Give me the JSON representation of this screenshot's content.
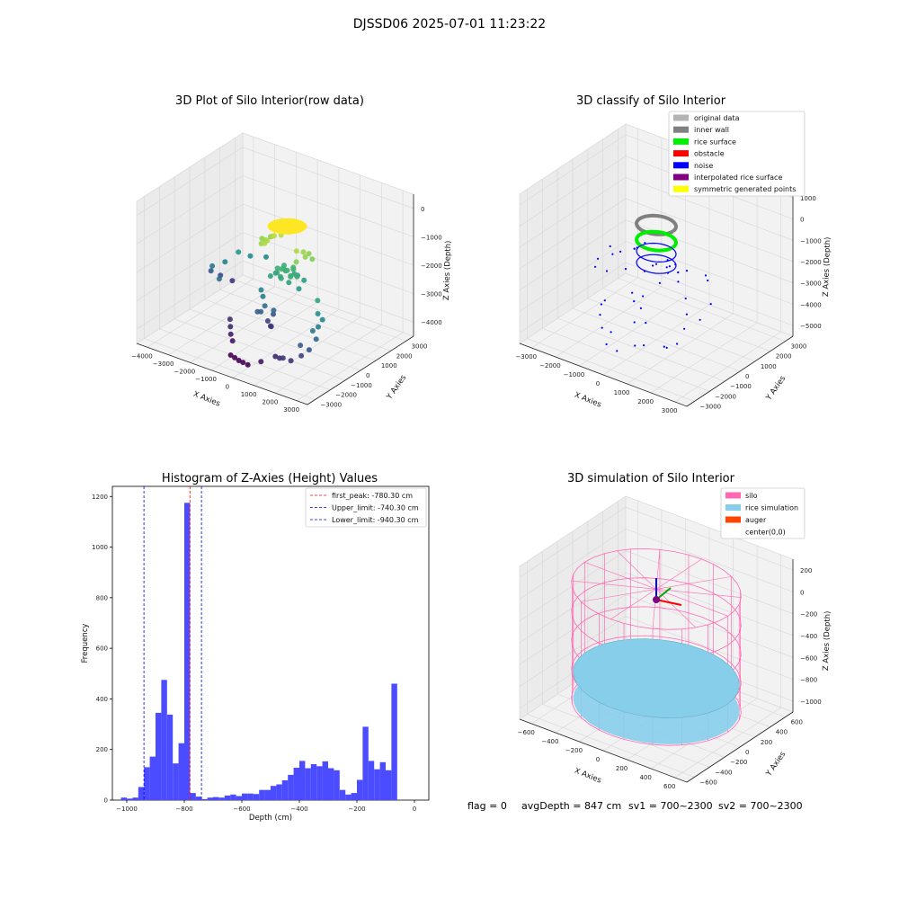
{
  "figure_title": "DJSSD06 2025-07-01 11:23:22",
  "status_text": {
    "flag": "flag = 0",
    "avg": "avgDepth = 847 cm",
    "sv1": "sv1 = 700~2300",
    "sv2": "sv2 = 700~2300"
  },
  "chart_data": [
    {
      "id": "raw",
      "type": "scatter",
      "title": "3D Plot of Silo Interior(row data)",
      "xlabel": "X Axies",
      "ylabel": "Y Axies",
      "zlabel": "Z Axies (Depth)",
      "xticks": [
        "−4000",
        "−3000",
        "−2000",
        "−1000",
        "0",
        "1000",
        "2000",
        "3000"
      ],
      "yticks": [
        "−3000",
        "−2000",
        "−1000",
        "0",
        "1000",
        "2000",
        "3000"
      ],
      "zticks": [
        "0",
        "−1000",
        "−2000",
        "−3000",
        "−4000"
      ],
      "xlim": [
        -4000,
        3000
      ],
      "ylim": [
        -3500,
        3500
      ],
      "zlim": [
        -5000,
        0
      ],
      "colormap": "viridis (by depth)",
      "points": [
        [
          0,
          0,
          -900
        ],
        [
          200,
          100,
          -880
        ],
        [
          -200,
          150,
          -900
        ],
        [
          100,
          -250,
          -890
        ],
        [
          -150,
          -200,
          -910
        ],
        [
          300,
          -50,
          -900
        ],
        [
          -300,
          0,
          -905
        ],
        [
          0,
          300,
          -895
        ],
        [
          0,
          -320,
          -900
        ],
        [
          250,
          250,
          -910
        ],
        [
          -250,
          -260,
          -900
        ],
        [
          220,
          -230,
          -905
        ],
        [
          -230,
          230,
          -895
        ],
        [
          -600,
          100,
          -1400
        ],
        [
          -700,
          -200,
          -1500
        ],
        [
          -500,
          400,
          -1450
        ],
        [
          -800,
          300,
          -1550
        ],
        [
          -900,
          0,
          -1600
        ],
        [
          -650,
          -450,
          -1500
        ],
        [
          -1000,
          500,
          -1700
        ],
        [
          -1100,
          100,
          -1650
        ],
        [
          -850,
          -350,
          -1600
        ],
        [
          500,
          -200,
          -1500
        ],
        [
          600,
          100,
          -1600
        ],
        [
          700,
          300,
          -1700
        ],
        [
          800,
          -100,
          -1650
        ],
        [
          900,
          200,
          -1800
        ],
        [
          650,
          -450,
          -1750
        ],
        [
          0,
          0,
          -2400
        ],
        [
          200,
          -100,
          -2500
        ],
        [
          -200,
          100,
          -2450
        ],
        [
          300,
          200,
          -2550
        ],
        [
          -300,
          -200,
          -2500
        ],
        [
          100,
          300,
          -2600
        ],
        [
          -100,
          -300,
          -2550
        ],
        [
          400,
          0,
          -2500
        ],
        [
          -400,
          0,
          -2450
        ],
        [
          250,
          -300,
          -2650
        ],
        [
          -250,
          300,
          -2600
        ],
        [
          0,
          400,
          -2500
        ],
        [
          0,
          -400,
          -2550
        ],
        [
          500,
          300,
          -2700
        ],
        [
          -500,
          -300,
          -2650
        ],
        [
          600,
          -200,
          -2800
        ],
        [
          -600,
          200,
          -2750
        ],
        [
          150,
          150,
          -2300
        ],
        [
          -150,
          -150,
          -2350
        ],
        [
          350,
          -350,
          -2400
        ],
        [
          -350,
          350,
          -2450
        ],
        [
          -2500,
          800,
          -2800
        ],
        [
          -2200,
          1100,
          -2950
        ],
        [
          -2800,
          400,
          -3100
        ],
        [
          -1800,
          1500,
          -3000
        ],
        [
          -3200,
          200,
          -3300
        ],
        [
          -2600,
          -300,
          -3400
        ],
        [
          1800,
          -900,
          -2600
        ],
        [
          2000,
          -1200,
          -2900
        ],
        [
          2200,
          -1500,
          -3200
        ],
        [
          2300,
          -1800,
          -3500
        ],
        [
          2200,
          -2100,
          -3800
        ],
        [
          2000,
          -2300,
          -4000
        ],
        [
          1700,
          -2500,
          -4200
        ],
        [
          1900,
          -2200,
          -3700
        ],
        [
          2100,
          -1700,
          -3300
        ],
        [
          2250,
          -1300,
          -3000
        ],
        [
          -500,
          -800,
          -3200
        ],
        [
          -300,
          -1000,
          -3400
        ],
        [
          -700,
          -600,
          -3100
        ],
        [
          0,
          -900,
          -3500
        ],
        [
          -400,
          -1100,
          -3600
        ],
        [
          -600,
          -1000,
          -3700
        ],
        [
          -200,
          -600,
          -3800
        ],
        [
          -300,
          -800,
          -4000
        ],
        [
          -100,
          -900,
          -4100
        ],
        [
          -250,
          -700,
          -4200
        ],
        [
          -1400,
          -1500,
          -4300
        ],
        [
          -1200,
          -1800,
          -4400
        ],
        [
          -1600,
          -1200,
          -4200
        ],
        [
          -1000,
          -2000,
          -4500
        ],
        [
          -600,
          -2500,
          -4800
        ],
        [
          -400,
          -2550,
          -4820
        ],
        [
          -200,
          -2600,
          -4810
        ],
        [
          0,
          -2600,
          -4830
        ],
        [
          -800,
          -2450,
          -4790
        ],
        [
          1000,
          -2400,
          -4300
        ],
        [
          1300,
          -2600,
          -4200
        ],
        [
          600,
          -2700,
          -4500
        ],
        [
          1500,
          -2700,
          -4100
        ],
        [
          -3300,
          900,
          -3900
        ],
        [
          -3500,
          600,
          -3700
        ],
        [
          -3000,
          1200,
          -4100
        ]
      ]
    },
    {
      "id": "cls",
      "type": "scatter",
      "title": "3D classify of Silo Interior",
      "xlabel": "X Axies",
      "ylabel": "Y Axies",
      "zlabel": "Z Axies (Depth)",
      "xticks": [
        "−3000",
        "−2000",
        "−1000",
        "0",
        "1000",
        "2000",
        "3000"
      ],
      "yticks": [
        "−3000",
        "−2000",
        "−1000",
        "0",
        "1000",
        "2000",
        "3000"
      ],
      "zticks": [
        "1000",
        "0",
        "−1000",
        "−2000",
        "−3000",
        "−4000",
        "−5000"
      ],
      "xlim": [
        -3500,
        3500
      ],
      "ylim": [
        -3500,
        3500
      ],
      "zlim": [
        -5500,
        1000
      ],
      "legend_position": "upper right",
      "legend": [
        {
          "label": "original data",
          "color": "#b4b4b4"
        },
        {
          "label": "inner wall",
          "color": "#808080"
        },
        {
          "label": "rice surface",
          "color": "#00ee00"
        },
        {
          "label": "obstacle",
          "color": "#ff0000"
        },
        {
          "label": "noise",
          "color": "#0000ff"
        },
        {
          "label": "interpolated rice surface",
          "color": "#800080"
        },
        {
          "label": "symmetric generated points",
          "color": "#ffff00"
        }
      ],
      "inner_wall_radius": 700,
      "rice_surface_z": -1200,
      "noise_points": [
        [
          -2500,
          900,
          -2800
        ],
        [
          -2200,
          1100,
          -3000
        ],
        [
          -2700,
          400,
          -3200
        ],
        [
          1800,
          -900,
          -2600
        ],
        [
          2100,
          -1300,
          -3000
        ],
        [
          2250,
          -1700,
          -3400
        ],
        [
          2200,
          -2100,
          -3900
        ],
        [
          1900,
          -2300,
          -4100
        ],
        [
          -500,
          -800,
          -3300
        ],
        [
          -300,
          -1000,
          -3500
        ],
        [
          -200,
          -700,
          -3900
        ],
        [
          -1400,
          -1500,
          -4300
        ],
        [
          -1000,
          -2000,
          -4500
        ],
        [
          -500,
          -2500,
          -4800
        ],
        [
          0,
          -2600,
          -4850
        ],
        [
          1000,
          -2400,
          -4300
        ],
        [
          600,
          -200,
          -1700
        ],
        [
          -600,
          200,
          -1600
        ],
        [
          300,
          300,
          -2600
        ],
        [
          -300,
          -300,
          -2500
        ],
        [
          0,
          0,
          -2200
        ],
        [
          400,
          -400,
          -2700
        ],
        [
          -400,
          400,
          -2600
        ],
        [
          800,
          0,
          -1900
        ],
        [
          -800,
          0,
          -1800
        ],
        [
          1300,
          -600,
          -2200
        ],
        [
          -1300,
          600,
          -2300
        ],
        [
          200,
          -1200,
          -3000
        ],
        [
          -200,
          1200,
          -2900
        ],
        [
          1500,
          900,
          -2500
        ],
        [
          -1500,
          -900,
          -2700
        ],
        [
          2600,
          -500,
          -2700
        ],
        [
          -3000,
          700,
          -3800
        ],
        [
          700,
          -1800,
          -3700
        ],
        [
          -700,
          1800,
          -3400
        ],
        [
          1200,
          1500,
          -3100
        ],
        [
          -1200,
          -1500,
          -3600
        ],
        [
          100,
          -1600,
          -4000
        ],
        [
          -100,
          1600,
          -3300
        ],
        [
          2400,
          -900,
          -3300
        ],
        [
          -2400,
          900,
          -3100
        ],
        [
          500,
          -2200,
          -4600
        ],
        [
          -500,
          -2200,
          -4400
        ],
        [
          1600,
          -2000,
          -4300
        ],
        [
          -1600,
          -1100,
          -4100
        ],
        [
          900,
          600,
          -2400
        ],
        [
          -900,
          -600,
          -2500
        ],
        [
          1100,
          -300,
          -2000
        ],
        [
          -1100,
          300,
          -2100
        ]
      ]
    },
    {
      "id": "hist",
      "type": "bar",
      "title": "Histogram of Z-Axies (Height) Values",
      "xlabel": "Depth (cm)",
      "ylabel": "Frequency",
      "xlim": [
        -1050,
        50
      ],
      "ylim": [
        0,
        1240
      ],
      "xticks": [
        "−1000",
        "−800",
        "−600",
        "−400",
        "−200",
        "0"
      ],
      "yticks": [
        "0",
        "200",
        "400",
        "600",
        "800",
        "1000",
        "1200"
      ],
      "bar_color": "#4b4bff",
      "bin_width": 20,
      "bin_starts": [
        -1020,
        -1000,
        -980,
        -960,
        -940,
        -920,
        -900,
        -880,
        -860,
        -840,
        -820,
        -800,
        -780,
        -760,
        -740,
        -720,
        -700,
        -680,
        -660,
        -640,
        -620,
        -600,
        -580,
        -560,
        -540,
        -520,
        -500,
        -480,
        -460,
        -440,
        -420,
        -400,
        -380,
        -360,
        -340,
        -320,
        -300,
        -280,
        -260,
        -240,
        -220,
        -200,
        -180,
        -160,
        -140,
        -120,
        -100,
        -80,
        -60,
        -40,
        -20
      ],
      "values": [
        10,
        6,
        10,
        52,
        130,
        172,
        345,
        475,
        338,
        145,
        225,
        1175,
        28,
        14,
        4,
        10,
        12,
        10,
        18,
        22,
        16,
        26,
        26,
        24,
        40,
        40,
        56,
        62,
        78,
        100,
        128,
        155,
        126,
        142,
        134,
        153,
        126,
        118,
        40,
        22,
        28,
        80,
        290,
        155,
        122,
        150,
        118,
        460,
        0,
        0,
        0
      ],
      "vlines": [
        {
          "label": "first_peak: -780.30 cm",
          "x": -780.3,
          "color": "#ff0000"
        },
        {
          "label": "Upper_limit: -740.30 cm",
          "x": -740.3,
          "color": "#0000ff"
        },
        {
          "label": "Lower_limit: -940.30 cm",
          "x": -940.3,
          "color": "#0000ff"
        }
      ],
      "legend_position": "upper right"
    },
    {
      "id": "sim",
      "type": "3d-surface",
      "title": "3D simulation of Silo Interior",
      "xlabel": "X Axies",
      "ylabel": "Y Axies",
      "zlabel": "Z Axies (Depth)",
      "xticks": [
        "−600",
        "−400",
        "−200",
        "0",
        "200",
        "400",
        "600"
      ],
      "yticks": [
        "−600",
        "−400",
        "−200",
        "0",
        "200",
        "400",
        "600"
      ],
      "zticks": [
        "200",
        "0",
        "−200",
        "−400",
        "−600",
        "−800",
        "−1000"
      ],
      "xlim": [
        -700,
        700
      ],
      "ylim": [
        -700,
        700
      ],
      "zlim": [
        -1200,
        250
      ],
      "silo_radius": 600,
      "silo_z": [
        -1100,
        0
      ],
      "rice_surface_z": -847,
      "legend_position": "upper right",
      "legend": [
        {
          "label": "silo",
          "color": "#ff69b4"
        },
        {
          "label": "rice simulation",
          "color": "#87ceeb"
        },
        {
          "label": "auger",
          "color": "#ff4500"
        },
        {
          "label": "center(0,0)",
          "color": ""
        }
      ]
    }
  ]
}
